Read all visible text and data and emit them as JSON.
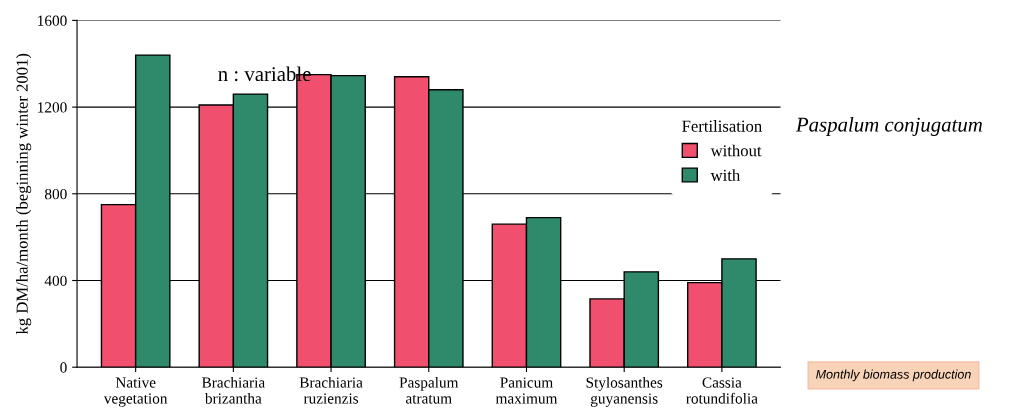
{
  "chart_data": {
    "type": "bar",
    "ylabel": "kg DM/ha/month (beginning winter 2001)",
    "categories": [
      "Native\nvegetation",
      "Brachiaria\nbrizantha",
      "Brachiaria\nruzienzis",
      "Paspalum\natratum",
      "Panicum\nmaximum",
      "Stylosanthes\nguyanensis",
      "Cassia\nrotundifolia"
    ],
    "series": [
      {
        "name": "without",
        "color": "#f0506e",
        "values": [
          750,
          1210,
          1350,
          1340,
          660,
          315,
          390
        ]
      },
      {
        "name": "with",
        "color": "#2e8a6a",
        "values": [
          1440,
          1260,
          1345,
          1280,
          690,
          440,
          500
        ]
      }
    ],
    "legend_title": "Fertilisation",
    "legend": "right",
    "ylim": [
      0,
      1600
    ],
    "yticks": [
      0,
      400,
      800,
      1200,
      1600
    ],
    "grid": "y",
    "annotations": [
      "n : variable",
      "Paspalum conjugatum",
      "Monthly biomass production"
    ]
  }
}
